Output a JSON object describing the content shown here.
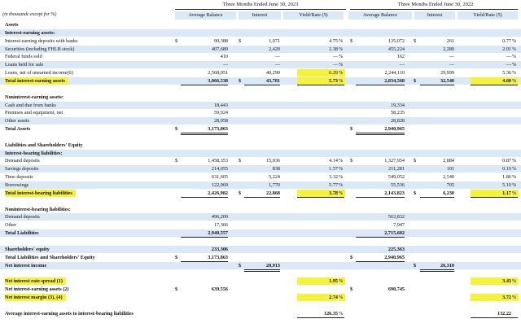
{
  "header": {
    "note": "(in thousands except for %)",
    "period_2023": "Three Months Ended June 30, 2023",
    "period_2022": "Three Months Ended June 30, 2022",
    "col_avg": "Average Balance",
    "col_int": "Interest",
    "col_yield": "Yield/Rate (5)"
  },
  "rows": [
    {
      "label": "Assets",
      "bold": true
    },
    {
      "label": "Interest-earning assets:",
      "bold": true,
      "shade": true
    },
    {
      "label": "Interest-earning deposits with banks",
      "d1": "$",
      "a1": "90,388",
      "d2": "$",
      "i1": "1,071",
      "y1": "4.75",
      "p1": "%",
      "d3": "$",
      "a2": "135,072",
      "d4": "$",
      "i2": "261",
      "y2": "0.77",
      "p2": "%"
    },
    {
      "label": "Securities (including FHLB stock)",
      "shade": true,
      "a1": "407,689",
      "i1": "2,420",
      "y1": "2.38",
      "p1": "%",
      "a2": "455,224",
      "i2": "2,280",
      "y2": "2.01",
      "p2": "%"
    },
    {
      "label": "Federal funds sold",
      "a1": "410",
      "i1": "—",
      "y1": "—",
      "p1": "%",
      "a2": "162",
      "i2": "—",
      "y2": "—",
      "p2": "%"
    },
    {
      "label": "Loans held for sale",
      "shade": true,
      "a1": "—",
      "i1": "—",
      "y1": "—",
      "p1": "%",
      "a2": "—",
      "i2": "—",
      "y2": "—",
      "p2": "%"
    },
    {
      "label": "Loans, net of unearned income(6)",
      "a1": "2,568,051",
      "i1": "40,290",
      "y1": "6.29",
      "p1": "%",
      "a2": "2,244,110",
      "i2": "29,999",
      "y2": "5.36",
      "p2": "%",
      "hl_y1": true
    },
    {
      "label": "Total interest-earning assets",
      "bold": true,
      "hl_label": true,
      "shade": true,
      "a1": "3,066,538",
      "d2": "$",
      "i1": "43,781",
      "y1": "5.73",
      "p1": "%",
      "a2": "2,834,568",
      "d4": "$",
      "i2": "32,540",
      "y2": "4.60",
      "p2": "%",
      "hl_y1": true,
      "hl_y2": true,
      "ul": true
    },
    {
      "label": "",
      "blank": true
    },
    {
      "label": "Noninterest-earning assets:",
      "bold": true
    },
    {
      "label": "Cash and due from banks",
      "shade": true,
      "a1": "18,443",
      "a2": "19,334"
    },
    {
      "label": "Premises and equipment, net",
      "a1": "59,924",
      "a2": "58,235"
    },
    {
      "label": "Other assets",
      "shade": true,
      "a1": "28,958",
      "a2": "28,828"
    },
    {
      "label": "Total Assets",
      "bold": true,
      "d1": "$",
      "a1": "3,173,863",
      "d3": "$",
      "a2": "2,940,965",
      "dbl": true
    },
    {
      "label": "",
      "blank": true
    },
    {
      "label": "Liabilities and Shareholders' Equity",
      "bold": true
    },
    {
      "label": "Interest-bearing liabilities:",
      "bold": true,
      "shade": true
    },
    {
      "label": "Demand deposits",
      "d1": "$",
      "a1": "1,458,353",
      "d2": "$",
      "i1": "15,036",
      "y1": "4.14",
      "p1": "%",
      "d3": "$",
      "a2": "1,327,954",
      "d4": "$",
      "i2": "2,884",
      "y2": "0.87",
      "p2": "%"
    },
    {
      "label": "Savings deposits",
      "shade": true,
      "a1": "214,055",
      "i1": "838",
      "y1": "1.57",
      "p1": "%",
      "a2": "211,281",
      "i2": "101",
      "y2": "0.19",
      "p2": "%"
    },
    {
      "label": "Time deposits",
      "a1": "631,605",
      "i1": "5,224",
      "y1": "3.32",
      "p1": "%",
      "a2": "549,052",
      "i2": "2,540",
      "y2": "1.86",
      "p2": "%"
    },
    {
      "label": "Borrowings",
      "shade": true,
      "a1": "122,969",
      "i1": "1,770",
      "y1": "5.77",
      "p1": "%",
      "a2": "55,536",
      "i2": "705",
      "y2": "5.10",
      "p2": "%"
    },
    {
      "label": "Total interest-bearing liabilities",
      "bold": true,
      "hl_label": true,
      "a1": "2,426,982",
      "d2": "$",
      "i1": "22,868",
      "y1": "3.78",
      "p1": "%",
      "a2": "2,143,823",
      "d4": "$",
      "i2": "6,230",
      "y2": "1.17",
      "p2": "%",
      "hl_y1": true,
      "hl_y2": true,
      "ul": true
    },
    {
      "label": "",
      "blank": true
    },
    {
      "label": "Noninterest-bearing liabilities:",
      "bold": true
    },
    {
      "label": "Demand deposits",
      "shade": true,
      "a1": "496,209",
      "a2": "563,832"
    },
    {
      "label": "Other",
      "a1": "17,366",
      "a2": "7,947"
    },
    {
      "label": "Total Liabilities",
      "bold": true,
      "shade": true,
      "a1": "2,940,557",
      "a2": "2,715,602",
      "ul": true
    },
    {
      "label": "",
      "blank": true
    },
    {
      "label": "Shareholders' equity",
      "bold": true,
      "shade": true,
      "a1": "233,306",
      "a2": "225,363"
    },
    {
      "label": "Total Liabilities and Shareholders' Equity",
      "bold": true,
      "d1": "$",
      "a1": "3,173,863",
      "d3": "$",
      "a2": "2,940,965",
      "dbl": true
    },
    {
      "label": "Net interest income",
      "bold": true,
      "shade": true,
      "d2": "$",
      "i1": "20,913",
      "d4": "$",
      "i2": "26,310",
      "dbl": true
    },
    {
      "label": "",
      "blank": true
    },
    {
      "label": "Net interest rate spread (1)",
      "bold": true,
      "hl_label": true,
      "y1": "1.95",
      "p1": "%",
      "y2": "3.43",
      "p2": "%",
      "hl_y1": true,
      "hl_y2": true
    },
    {
      "label": "Net interest-earning assets (2)",
      "bold": true,
      "d1": "$",
      "a1": "639,556",
      "d3": "$",
      "a2": "690,745"
    },
    {
      "label": "Net interest margin (3), (4)",
      "bold": true,
      "hl_label": true,
      "y1": "2.74",
      "p1": "%",
      "y2": "3.72",
      "p2": "%",
      "hl_y1": true,
      "hl_y2": true
    },
    {
      "label": "",
      "blank": true
    },
    {
      "label": "Average interest-earning assets to interest-bearing liabilities",
      "bold": true,
      "y1": "126.35",
      "p1": "%",
      "y2": "132.22",
      "p2": "",
      "ul": true
    }
  ]
}
